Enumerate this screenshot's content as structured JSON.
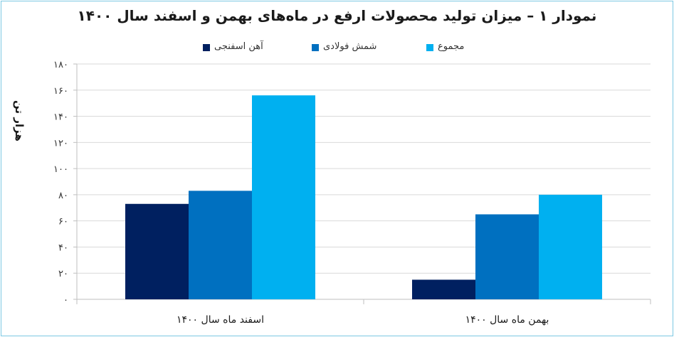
{
  "chart_data": {
    "type": "bar",
    "title": "نمودار ۱ – میزان تولید محصولات ارفع در ماه‌های بهمن و اسفند سال ۱۴۰۰",
    "ylabel": "هزار تن",
    "xlabel": "",
    "ylim": [
      0,
      180
    ],
    "y_ticks": [
      "۰",
      "۲۰",
      "۴۰",
      "۶۰",
      "۸۰",
      "۱۰۰",
      "۱۲۰",
      "۱۴۰",
      "۱۶۰",
      "۱۸۰"
    ],
    "categories": [
      "اسفند ماه سال ۱۴۰۰",
      "بهمن ماه سال ۱۴۰۰"
    ],
    "series": [
      {
        "name": "آهن اسفنجی",
        "color": "#002060",
        "values": [
          73,
          15
        ]
      },
      {
        "name": "شمش فولادی",
        "color": "#0070c0",
        "values": [
          83,
          65
        ]
      },
      {
        "name": "مجموع",
        "color": "#00b0f0",
        "values": [
          156,
          80
        ]
      }
    ],
    "grid": true,
    "legend_position": "top"
  }
}
